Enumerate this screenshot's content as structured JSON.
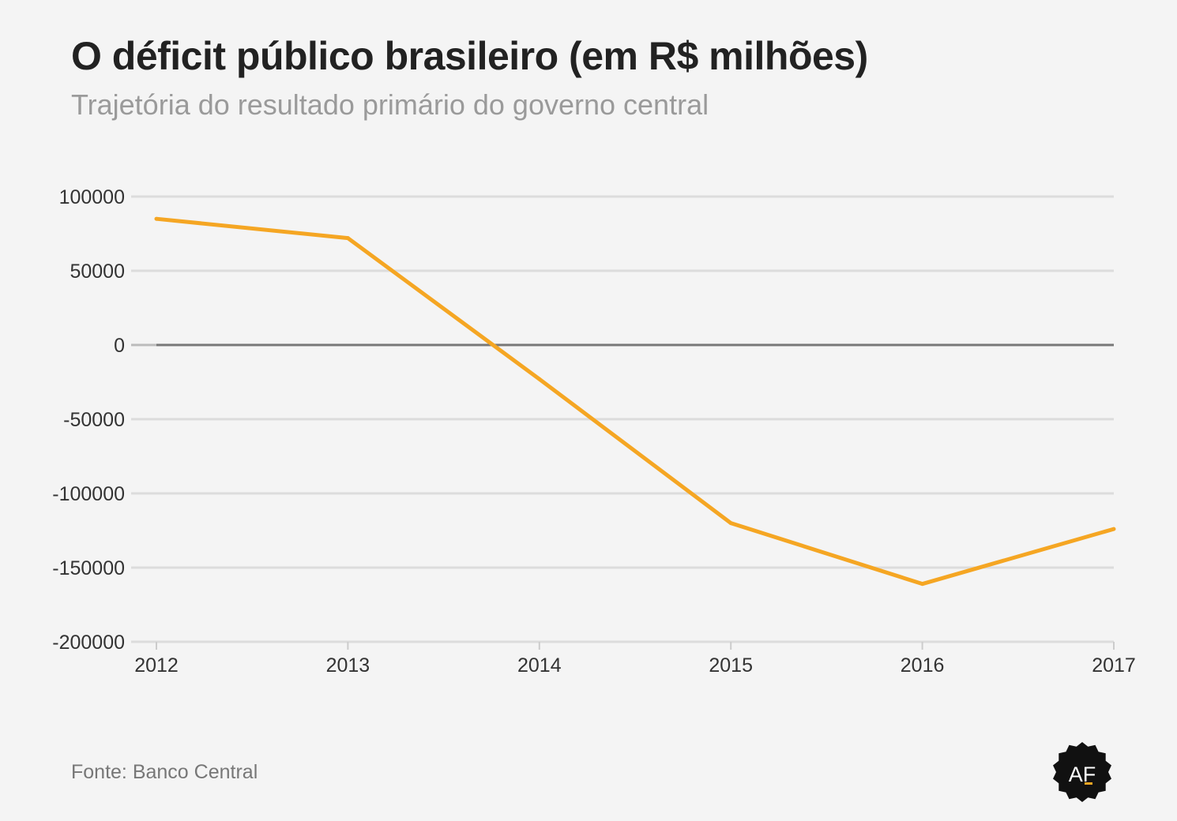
{
  "header": {
    "title": "O déficit público brasileiro (em R$ milhões)",
    "subtitle": "Trajetória do resultado primário do governo central"
  },
  "footer": {
    "source": "Fonte: Banco Central",
    "logo_text": "AF"
  },
  "colors": {
    "line": "#f5a623",
    "grid": "#dcdcdc",
    "zero_line": "#777777",
    "logo_bg": "#111111",
    "logo_accent": "#f5a623"
  },
  "chart_data": {
    "type": "line",
    "title": "O déficit público brasileiro (em R$ milhões)",
    "subtitle": "Trajetória do resultado primário do governo central",
    "xlabel": "",
    "ylabel": "",
    "x": [
      2012,
      2013,
      2014,
      2015,
      2016,
      2017
    ],
    "series": [
      {
        "values": [
          85000,
          72000,
          -23000,
          -120000,
          -161000,
          -124000
        ]
      }
    ],
    "ylim": [
      -200000,
      100000
    ],
    "yticks": [
      100000,
      50000,
      0,
      -50000,
      -100000,
      -150000,
      -200000
    ],
    "xticks": [
      2012,
      2013,
      2014,
      2015,
      2016,
      2017
    ],
    "grid": true,
    "legend": "none"
  }
}
